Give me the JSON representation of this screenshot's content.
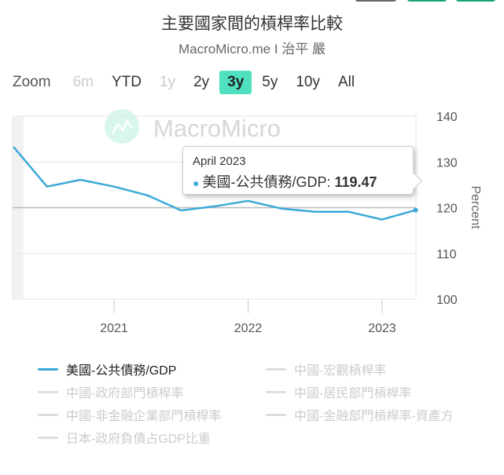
{
  "header": {
    "title": "主要國家間的槓桿率比較",
    "subtitle": "MacroMicro.me I 治平 嚴"
  },
  "zoom": {
    "label": "Zoom",
    "buttons": [
      {
        "label": "6m",
        "state": "disabled"
      },
      {
        "label": "YTD",
        "state": "normal"
      },
      {
        "label": "1y",
        "state": "disabled"
      },
      {
        "label": "2y",
        "state": "normal"
      },
      {
        "label": "3y",
        "state": "selected"
      },
      {
        "label": "5y",
        "state": "normal"
      },
      {
        "label": "10y",
        "state": "normal"
      },
      {
        "label": "All",
        "state": "normal"
      }
    ]
  },
  "watermark": "MacroMicro",
  "tooltip": {
    "date": "April 2023",
    "series": "美國-公共債務/GDP",
    "value": "119.47"
  },
  "colors": {
    "series": "#3ba9d8",
    "accent": "#4fe0bf"
  },
  "chart_data": {
    "type": "line",
    "title": "主要國家間的槓桿率比較",
    "ylabel": "Percent",
    "ylim": [
      100,
      140
    ],
    "yticks": [
      "100",
      "110",
      "120",
      "130",
      "140"
    ],
    "xticks": [
      "2021",
      "2022",
      "2023"
    ],
    "grid": true,
    "legend_placement": "bottom",
    "series": [
      {
        "name": "美國-公共債務/GDP",
        "color": "#3ba9d8",
        "x": [
          "2020-04",
          "2020-07",
          "2020-10",
          "2021-01",
          "2021-04",
          "2021-07",
          "2021-10",
          "2022-01",
          "2022-04",
          "2022-07",
          "2022-10",
          "2023-01",
          "2023-04"
        ],
        "values": [
          133.3,
          124.6,
          126.1,
          124.6,
          122.7,
          119.4,
          120.3,
          121.5,
          119.8,
          119.1,
          119.1,
          117.4,
          119.47
        ]
      }
    ]
  },
  "legend": [
    {
      "label": "美國-公共債務/GDP",
      "active": true
    },
    {
      "label": "中國-宏觀槓桿率",
      "active": false
    },
    {
      "label": "中國-政府部門槓桿率",
      "active": false
    },
    {
      "label": "中國-居民部門槓桿率",
      "active": false
    },
    {
      "label": "中國-非金融企業部門槓桿率",
      "active": false
    },
    {
      "label": "中國-金融部門槓桿率-資產方",
      "active": false
    },
    {
      "label": "日本-政府負債占GDP比重",
      "active": false
    }
  ]
}
